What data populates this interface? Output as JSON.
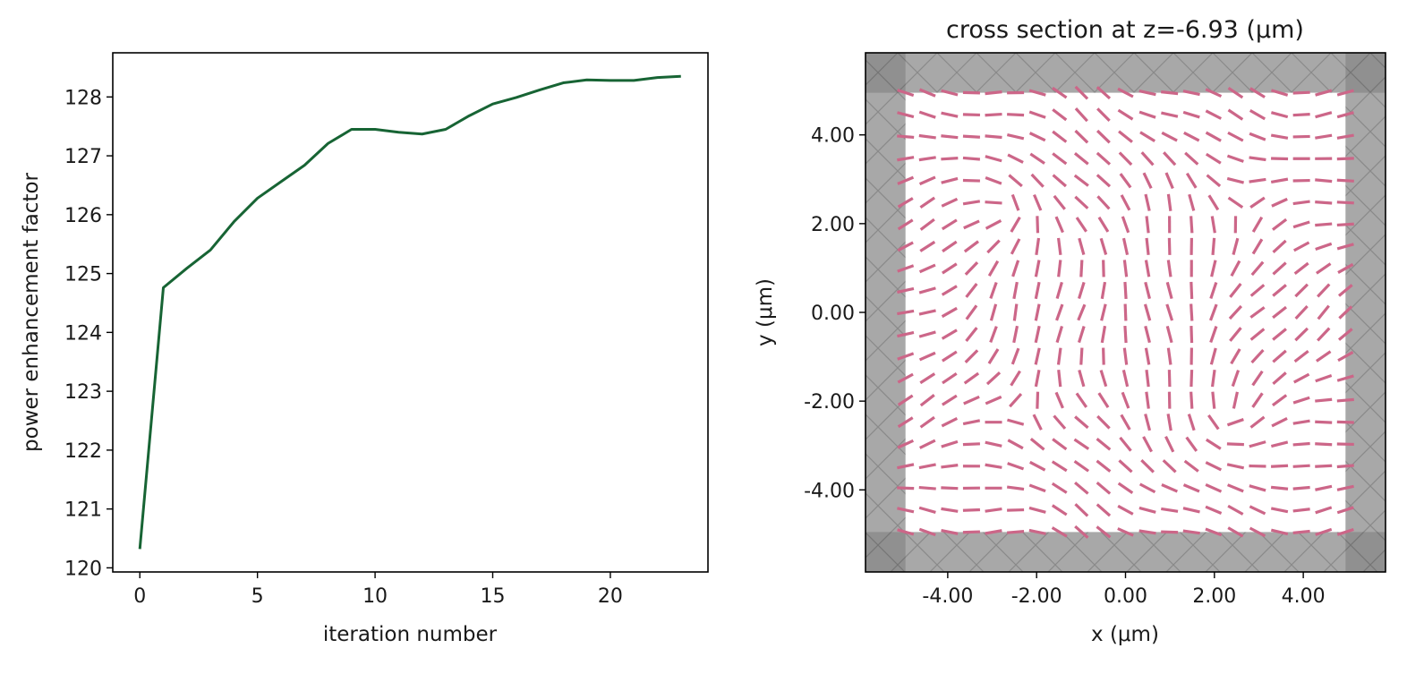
{
  "chart_data": [
    {
      "type": "line",
      "title": "",
      "xlabel": "iteration number",
      "ylabel": "power enhancement factor",
      "xlim": [
        -1.15,
        24.15
      ],
      "ylim": [
        119.93,
        128.75
      ],
      "xticks": [
        0,
        5,
        10,
        15,
        20
      ],
      "xtick_labels": [
        "0",
        "5",
        "10",
        "15",
        "20"
      ],
      "yticks": [
        120,
        121,
        122,
        123,
        124,
        125,
        126,
        127,
        128
      ],
      "ytick_labels": [
        "120",
        "121",
        "122",
        "123",
        "124",
        "125",
        "126",
        "127",
        "128"
      ],
      "grid": false,
      "series": [
        {
          "color": "#176434",
          "x": [
            0,
            1,
            2,
            3,
            4,
            5,
            6,
            7,
            8,
            9,
            10,
            11,
            12,
            13,
            14,
            15,
            16,
            17,
            18,
            19,
            20,
            21,
            22,
            23
          ],
          "y": [
            120.32,
            124.76,
            125.09,
            125.4,
            125.88,
            126.28,
            126.56,
            126.84,
            127.21,
            127.45,
            127.45,
            127.4,
            127.37,
            127.45,
            127.68,
            127.88,
            127.99,
            128.12,
            128.24,
            128.29,
            128.28,
            128.28,
            128.33,
            128.35
          ]
        }
      ]
    },
    {
      "type": "vector-field",
      "title": "cross section at z=-6.93 (μm)",
      "xlabel": "x (μm)",
      "ylabel": "y (μm)",
      "xlim": [
        -5.85,
        5.85
      ],
      "ylim": [
        -5.85,
        5.85
      ],
      "xticks": [
        -4,
        -2,
        0,
        2,
        4
      ],
      "xtick_labels": [
        "-4.00",
        "-2.00",
        "0.00",
        "2.00",
        "4.00"
      ],
      "yticks": [
        4,
        2,
        0,
        -2,
        -4
      ],
      "ytick_labels": [
        "4.00",
        "2.00",
        "0.00",
        "-2.00",
        "-4.00"
      ],
      "grid": false,
      "structure_region": [
        -4.95,
        4.95
      ],
      "pml_color": "#a8a8a8",
      "arrow_color": "#cc6688",
      "grid_points": 21,
      "vortices": [
        {
          "x": -2.6,
          "y": 2.4,
          "charge": 1
        },
        {
          "x": 2.4,
          "y": -2.4,
          "charge": 1
        },
        {
          "x": 2.6,
          "y": 2.4,
          "charge": -1
        },
        {
          "x": -2.4,
          "y": -2.4,
          "charge": -1
        }
      ]
    }
  ]
}
